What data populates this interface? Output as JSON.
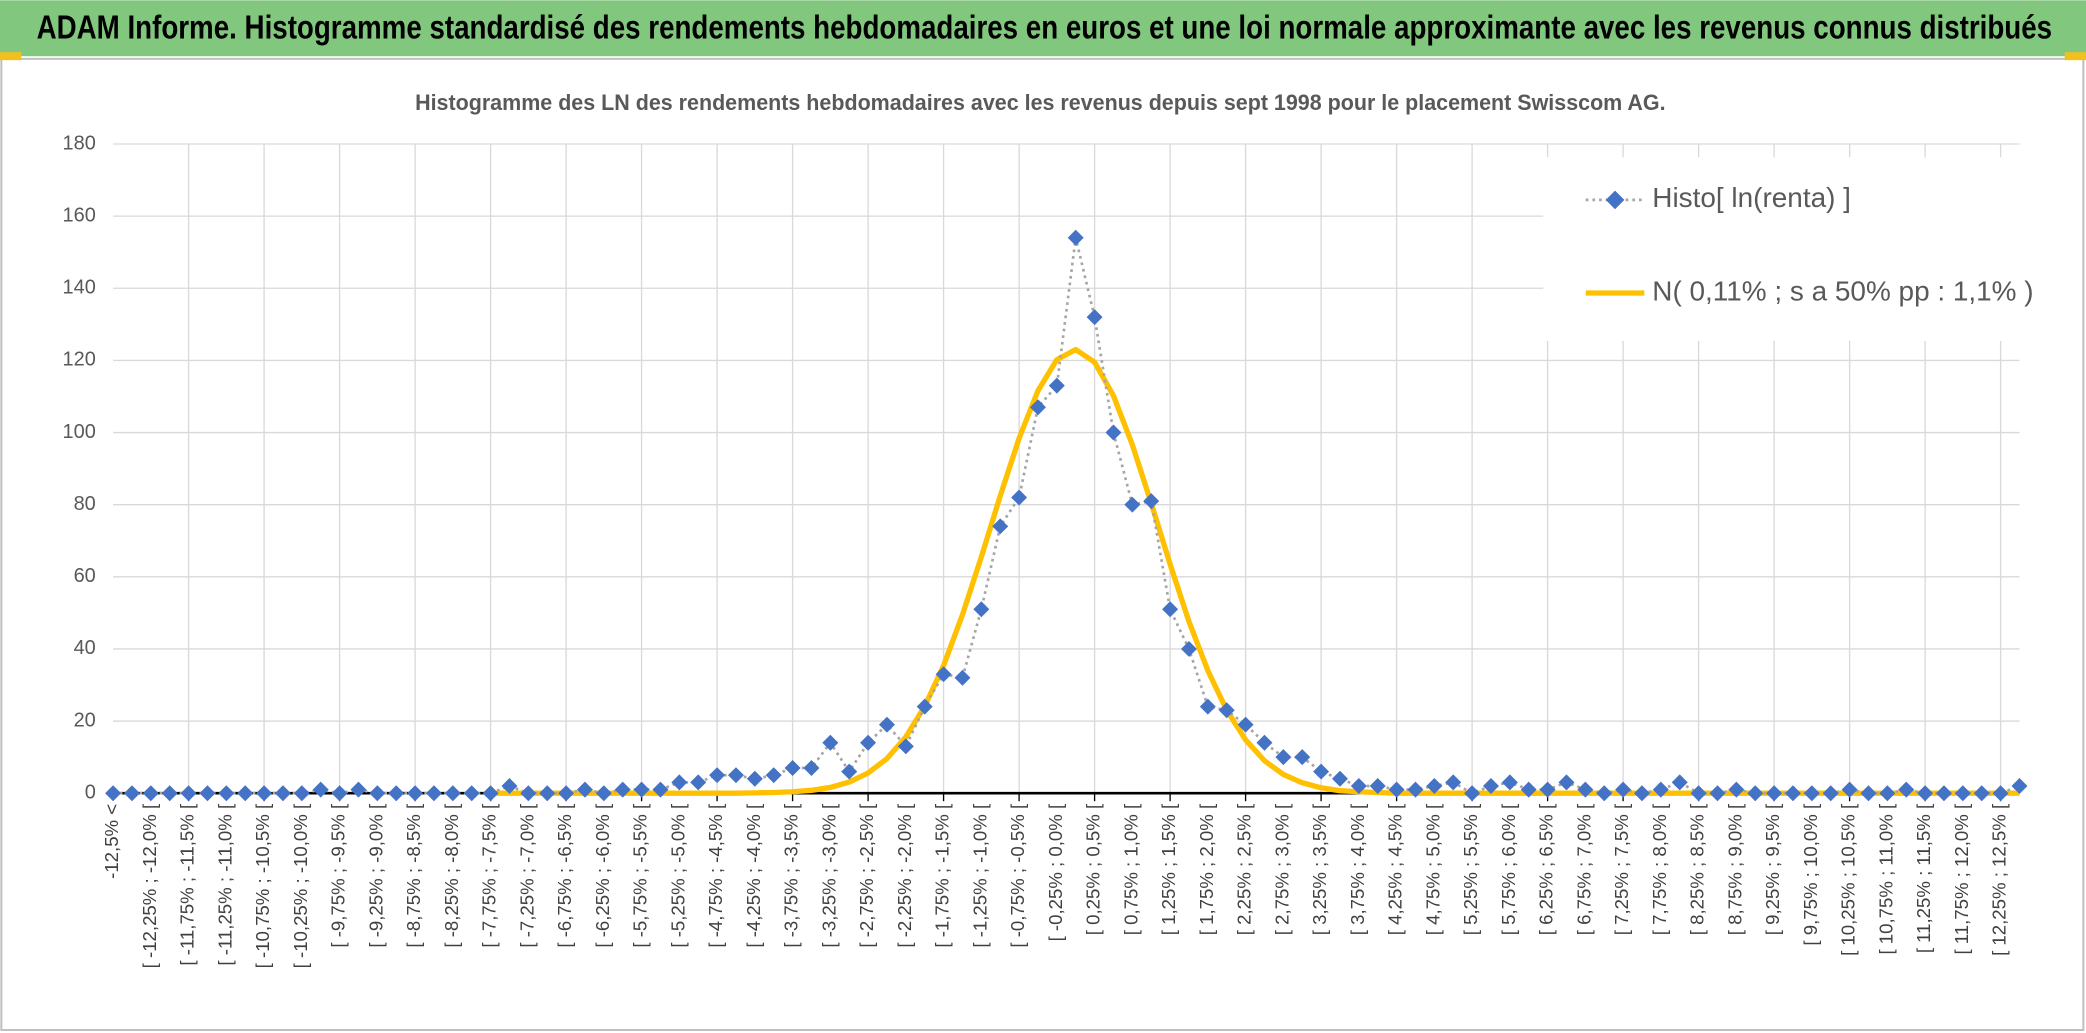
{
  "chart_data": {
    "type": "line",
    "title": "ADAM Informe. Histogramme standardisé des rendements hebdomadaires en euros et une loi normale approximante avec les revenus connus distribués",
    "subtitle": "Histogramme des LN des rendements hebdomadaires avec les revenus depuis sept 1998 pour le placement Swisscom AG.",
    "categories": [
      "-12,5% <",
      null,
      "[ -12,25% ; -12,0% [",
      null,
      "[ -11,75% ; -11,5% [",
      null,
      "[ -11,25% ; -11,0% [",
      null,
      "[ -10,75% ; -10,5% [",
      null,
      "[ -10,25% ; -10,0% [",
      null,
      "[ -9,75% ; -9,5% [",
      null,
      "[ -9,25% ; -9,0% [",
      null,
      "[ -8,75% ; -8,5% [",
      null,
      "[ -8,25% ; -8,0% [",
      null,
      "[ -7,75% ; -7,5% [",
      null,
      "[ -7,25% ; -7,0% [",
      null,
      "[ -6,75% ; -6,5% [",
      null,
      "[ -6,25% ; -6,0% [",
      null,
      "[ -5,75% ; -5,5% [",
      null,
      "[ -5,25% ; -5,0% [",
      null,
      "[ -4,75% ; -4,5% [",
      null,
      "[ -4,25% ; -4,0% [",
      null,
      "[ -3,75% ; -3,5% [",
      null,
      "[ -3,25% ; -3,0% [",
      null,
      "[ -2,75% ; -2,5% [",
      null,
      "[ -2,25% ; -2,0% [",
      null,
      "[ -1,75% ; -1,5% [",
      null,
      "[ -1,25% ; -1,0% [",
      null,
      "[ -0,75% ; -0,5% [",
      null,
      "[ -0,25% ; 0,0% [",
      null,
      "[ 0,25% ; 0,5% [",
      null,
      "[ 0,75% ; 1,0% [",
      null,
      "[ 1,25% ; 1,5% [",
      null,
      "[ 1,75% ; 2,0% [",
      null,
      "[ 2,25% ; 2,5% [",
      null,
      "[ 2,75% ; 3,0% [",
      null,
      "[ 3,25% ; 3,5% [",
      null,
      "[ 3,75% ; 4,0% [",
      null,
      "[ 4,25% ; 4,5% [",
      null,
      "[ 4,75% ; 5,0% [",
      null,
      "[ 5,25% ; 5,5% [",
      null,
      "[ 5,75% ; 6,0% [",
      null,
      "[ 6,25% ; 6,5% [",
      null,
      "[ 6,75% ; 7,0% [",
      null,
      "[ 7,25% ; 7,5% [",
      null,
      "[ 7,75% ; 8,0% [",
      null,
      "[ 8,25% ; 8,5% [",
      null,
      "[ 8,75% ; 9,0% [",
      null,
      "[ 9,25% ; 9,5% [",
      null,
      "[ 9,75% ; 10,0% [",
      null,
      "[ 10,25% ; 10,5% [",
      null,
      "[ 10,75% ; 11,0% [",
      null,
      "[ 11,25% ; 11,5% [",
      null,
      "[ 11,75% ; 12,0% [",
      null,
      "[ 12,25% ; 12,5% [",
      null
    ],
    "series": [
      {
        "name": "Histo[ ln(renta) ]",
        "color": "#4472c4",
        "line_color": "#a5a5a5",
        "values": [
          0,
          0,
          0,
          0,
          0,
          0,
          0,
          0,
          0,
          0,
          0,
          1,
          0,
          1,
          0,
          0,
          0,
          0,
          0,
          0,
          0,
          2,
          0,
          0,
          0,
          1,
          0,
          1,
          1,
          1,
          3,
          3,
          5,
          5,
          4,
          5,
          7,
          7,
          14,
          6,
          14,
          19,
          13,
          24,
          33,
          32,
          51,
          74,
          82,
          107,
          113,
          154,
          132,
          100,
          80,
          81,
          51,
          40,
          24,
          23,
          19,
          14,
          10,
          10,
          6,
          4,
          2,
          2,
          1,
          1,
          2,
          3,
          0,
          2,
          3,
          1,
          1,
          3,
          1,
          0,
          1,
          0,
          1,
          3,
          0,
          0,
          1,
          0,
          0,
          0,
          0,
          0,
          1,
          0,
          0,
          1,
          0,
          0,
          0,
          0,
          0,
          2
        ]
      },
      {
        "name": "N( 0,11% ; s a 50% pp : 1,1% )",
        "color": "#ffc000",
        "values": [
          null,
          null,
          null,
          null,
          null,
          null,
          null,
          null,
          null,
          null,
          null,
          null,
          null,
          null,
          null,
          null,
          null,
          null,
          null,
          null,
          0,
          0,
          0,
          0,
          0,
          0,
          0,
          0,
          0,
          0,
          0,
          0,
          0,
          0,
          0.1,
          0.2,
          0.4,
          0.8,
          1.6,
          3.1,
          5.6,
          9.6,
          15.6,
          24.1,
          35.4,
          49.5,
          65.5,
          82.4,
          98.4,
          111.6,
          120.2,
          123.0,
          119.5,
          110.2,
          96.6,
          80.4,
          63.5,
          47.6,
          34.0,
          23.0,
          14.8,
          9.0,
          5.2,
          2.9,
          1.5,
          0.7,
          0.4,
          0.2,
          0,
          0,
          0,
          0,
          0,
          0,
          0,
          0,
          0,
          0,
          0,
          0,
          0,
          0,
          0,
          0,
          0,
          0,
          0,
          0,
          0,
          0,
          0,
          0,
          0,
          0,
          0,
          0,
          0,
          0,
          0,
          0,
          0,
          0
        ]
      }
    ],
    "ylim": [
      0,
      180
    ],
    "yticks": [
      0,
      20,
      40,
      60,
      80,
      100,
      120,
      140,
      160,
      180
    ],
    "grid": true,
    "legend": "top-right"
  }
}
